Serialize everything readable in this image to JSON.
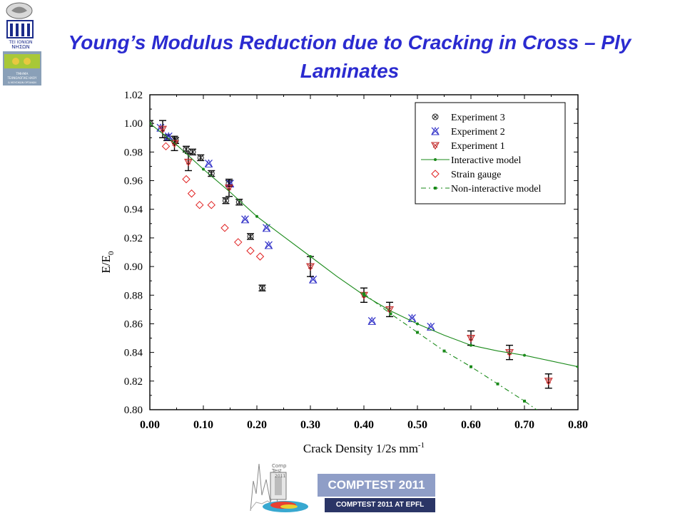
{
  "slide": {
    "title_line1": "Young’s Modulus Reduction due to Cracking in Cross – Ply",
    "title_line2": "Laminates"
  },
  "logos": {
    "top_left_text": [
      "ΤΕΙ ΙΟΝΙΩΝ",
      "ΝΗΣΩΝ",
      "ΤΜΗΜΑ",
      "ΤΕΧΝΟΛΟΓΙΑΣ ΗΧΟΥ",
      "& ΜΟΥΣΙΚΩΝ ΟΡΓΑΝΩΝ"
    ],
    "bottom_small_text": [
      "Comp",
      "Test",
      "2011"
    ],
    "comptest_label": "COMPTEST 2011",
    "comptest_sub": "COMPTEST 2011 AT EPFL"
  },
  "colors": {
    "title": "#2b2bd0",
    "experiment3": "#222222",
    "experiment2": "#3030c8",
    "experiment1": "#c02020",
    "model": "#1a8a1a",
    "strain_gauge": "#e02020"
  },
  "chart_data": {
    "type": "scatter",
    "title": "",
    "xlabel": "Crack Density 1/2s mm",
    "xlabel_sup": "-1",
    "ylabel": "E/E",
    "ylabel_sub": "0",
    "xlim": [
      0.0,
      0.8
    ],
    "ylim": [
      0.8,
      1.02
    ],
    "x_ticks": [
      "0.00",
      "0.10",
      "0.20",
      "0.30",
      "0.40",
      "0.50",
      "0.60",
      "0.70",
      "0.80"
    ],
    "y_ticks": [
      "0.80",
      "0.82",
      "0.84",
      "0.86",
      "0.88",
      "0.90",
      "0.92",
      "0.94",
      "0.96",
      "0.98",
      "1.00",
      "1.02"
    ],
    "legend_position": "top-right",
    "grid": false,
    "series": [
      {
        "name": "Experiment 3",
        "marker": "circle-x",
        "points": [
          [
            0.0,
            1.0
          ],
          [
            0.032,
            0.99
          ],
          [
            0.048,
            0.988
          ],
          [
            0.068,
            0.982
          ],
          [
            0.08,
            0.98
          ],
          [
            0.095,
            0.976
          ],
          [
            0.115,
            0.965
          ],
          [
            0.142,
            0.946
          ],
          [
            0.148,
            0.958
          ],
          [
            0.167,
            0.945
          ],
          [
            0.188,
            0.921
          ],
          [
            0.21,
            0.885
          ]
        ],
        "error": [
          0.002,
          0.002,
          0.002,
          0.002,
          0.002,
          0.002,
          0.002,
          0.002,
          0.002,
          0.002,
          0.002,
          0.002
        ]
      },
      {
        "name": "Experiment 2",
        "marker": "x-tri",
        "points": [
          [
            0.02,
            0.997
          ],
          [
            0.035,
            0.991
          ],
          [
            0.11,
            0.972
          ],
          [
            0.15,
            0.958
          ],
          [
            0.178,
            0.933
          ],
          [
            0.218,
            0.927
          ],
          [
            0.222,
            0.915
          ],
          [
            0.305,
            0.891
          ],
          [
            0.415,
            0.862
          ],
          [
            0.49,
            0.864
          ],
          [
            0.525,
            0.858
          ]
        ]
      },
      {
        "name": "Experiment 1",
        "marker": "triangle-down-x",
        "points": [
          [
            0.024,
            0.996
          ],
          [
            0.046,
            0.986
          ],
          [
            0.072,
            0.973
          ],
          [
            0.148,
            0.955
          ],
          [
            0.3,
            0.9
          ],
          [
            0.4,
            0.88
          ],
          [
            0.448,
            0.87
          ],
          [
            0.6,
            0.85
          ],
          [
            0.672,
            0.84
          ],
          [
            0.745,
            0.82
          ]
        ],
        "error": [
          0.006,
          0.005,
          0.006,
          0.006,
          0.007,
          0.005,
          0.005,
          0.005,
          0.005,
          0.005
        ]
      },
      {
        "name": "Interactive model",
        "marker": "line-dot",
        "points": [
          [
            0.0,
            1.0
          ],
          [
            0.05,
            0.985
          ],
          [
            0.1,
            0.968
          ],
          [
            0.15,
            0.952
          ],
          [
            0.2,
            0.935
          ],
          [
            0.25,
            0.921
          ],
          [
            0.3,
            0.907
          ],
          [
            0.35,
            0.893
          ],
          [
            0.4,
            0.88
          ],
          [
            0.45,
            0.869
          ],
          [
            0.5,
            0.86
          ],
          [
            0.55,
            0.852
          ],
          [
            0.6,
            0.845
          ],
          [
            0.65,
            0.841
          ],
          [
            0.7,
            0.838
          ],
          [
            0.75,
            0.834
          ],
          [
            0.8,
            0.83
          ]
        ]
      },
      {
        "name": "Strain gauge",
        "marker": "diamond",
        "points": [
          [
            0.03,
            0.984
          ],
          [
            0.068,
            0.961
          ],
          [
            0.078,
            0.951
          ],
          [
            0.093,
            0.943
          ],
          [
            0.115,
            0.943
          ],
          [
            0.14,
            0.927
          ],
          [
            0.165,
            0.917
          ],
          [
            0.188,
            0.911
          ],
          [
            0.206,
            0.907
          ]
        ]
      },
      {
        "name": "Non-interactive model",
        "marker": "dash-square",
        "points": [
          [
            0.4,
            0.881
          ],
          [
            0.45,
            0.867
          ],
          [
            0.5,
            0.854
          ],
          [
            0.55,
            0.841
          ],
          [
            0.6,
            0.83
          ],
          [
            0.65,
            0.818
          ],
          [
            0.7,
            0.806
          ],
          [
            0.73,
            0.798
          ]
        ]
      }
    ]
  }
}
